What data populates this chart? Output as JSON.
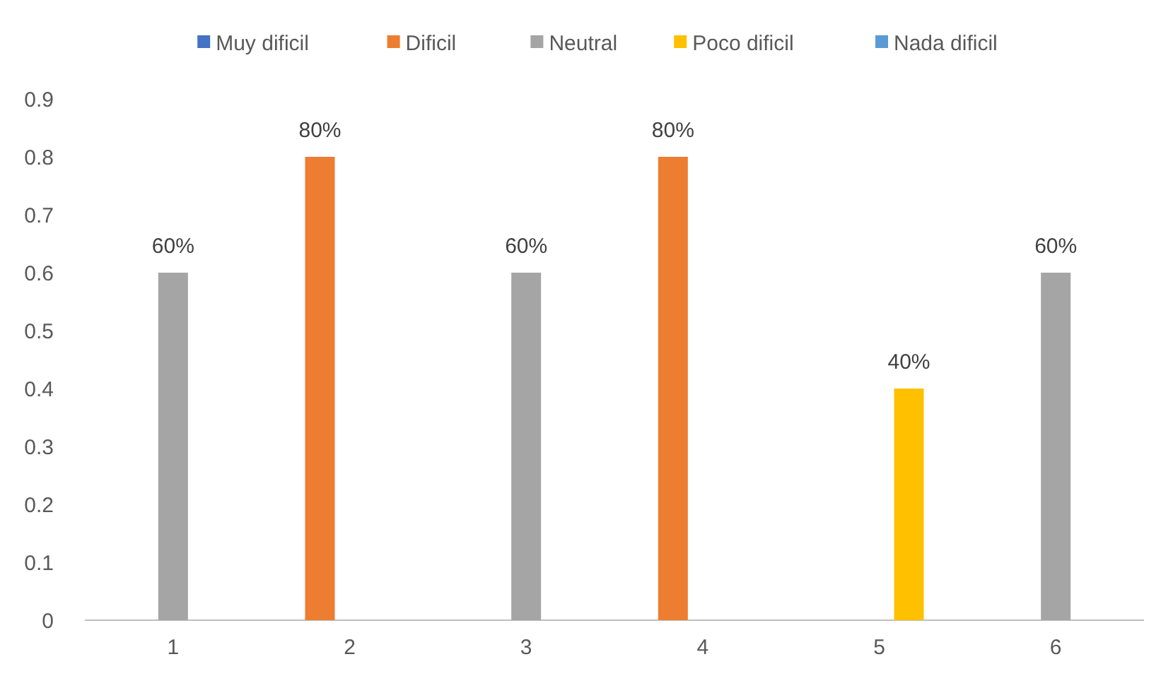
{
  "chart_data": {
    "type": "bar",
    "categories": [
      "1",
      "2",
      "3",
      "4",
      "5",
      "6"
    ],
    "series": [
      {
        "name": "Muy dificil",
        "color": "#4472c4",
        "values": [
          null,
          null,
          null,
          null,
          null,
          null
        ],
        "value_labels": [
          null,
          null,
          null,
          null,
          null,
          null
        ]
      },
      {
        "name": "Dificil",
        "color": "#ed7d31",
        "values": [
          null,
          0.8,
          null,
          0.8,
          null,
          null
        ],
        "value_labels": [
          null,
          "80%",
          null,
          "80%",
          null,
          null
        ]
      },
      {
        "name": "Neutral",
        "color": "#a5a5a5",
        "values": [
          0.6,
          null,
          0.6,
          null,
          null,
          0.6
        ],
        "value_labels": [
          "60%",
          null,
          "60%",
          null,
          null,
          "60%"
        ]
      },
      {
        "name": "Poco dificil",
        "color": "#ffc000",
        "values": [
          null,
          null,
          null,
          null,
          0.4,
          null
        ],
        "value_labels": [
          null,
          null,
          null,
          null,
          "40%",
          null
        ]
      },
      {
        "name": "Nada dificil",
        "color": "#5b9bd5",
        "values": [
          null,
          null,
          null,
          null,
          null,
          null
        ],
        "value_labels": [
          null,
          null,
          null,
          null,
          null,
          null
        ]
      }
    ],
    "ylim": [
      0,
      0.9
    ],
    "yticks": [
      0,
      0.1,
      0.2,
      0.3,
      0.4,
      0.5,
      0.6,
      0.7,
      0.8,
      0.9
    ],
    "grid": false,
    "legend": "top"
  }
}
